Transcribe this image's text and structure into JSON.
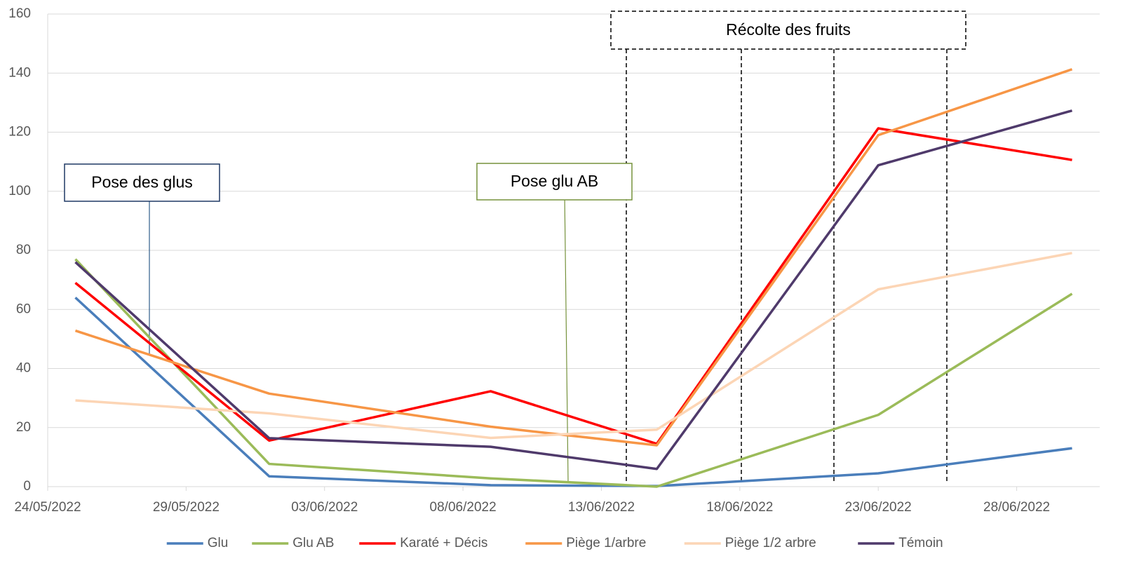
{
  "chart_data": {
    "type": "line",
    "x": [
      "2022-05-25",
      "2022-06-01",
      "2022-06-09",
      "2022-06-15",
      "2022-06-23",
      "2022-06-30"
    ],
    "series": [
      {
        "name": "Glu",
        "color": "#4a7ebb",
        "values": [
          64,
          3.5,
          0.5,
          0.2,
          4.5,
          13
        ]
      },
      {
        "name": "Glu AB",
        "color": "#9bbb59",
        "values": [
          77,
          7.7,
          2.8,
          0,
          24.3,
          65.3
        ]
      },
      {
        "name": "Karaté + Décis",
        "color": "#ff0000",
        "values": [
          69,
          15.6,
          32.3,
          14.5,
          121.3,
          110.6
        ]
      },
      {
        "name": "Piège 1/arbre",
        "color": "#f79646",
        "values": [
          52.8,
          31.5,
          20.3,
          14,
          119,
          141.3
        ]
      },
      {
        "name": "Piège 1/2 arbre",
        "color": "#fcd5b5",
        "values": [
          29.2,
          24.8,
          16.5,
          19.3,
          66.8,
          79.1
        ]
      },
      {
        "name": "Témoin",
        "color": "#4f3a6b",
        "values": [
          76,
          16.4,
          13.5,
          6,
          108.8,
          127.3
        ]
      }
    ],
    "xlim": [
      "2022-05-24",
      "2022-07-01"
    ],
    "xticks": [
      {
        "value": "2022-05-24",
        "label": "24/05/2022"
      },
      {
        "value": "2022-05-29",
        "label": "29/05/2022"
      },
      {
        "value": "2022-06-03",
        "label": "03/06/2022"
      },
      {
        "value": "2022-06-08",
        "label": "08/06/2022"
      },
      {
        "value": "2022-06-13",
        "label": "13/06/2022"
      },
      {
        "value": "2022-06-18",
        "label": "18/06/2022"
      },
      {
        "value": "2022-06-23",
        "label": "23/06/2022"
      },
      {
        "value": "2022-06-28",
        "label": "28/06/2022"
      }
    ],
    "ylim": [
      0,
      160
    ],
    "yticks": [
      0,
      20,
      40,
      60,
      80,
      100,
      120,
      140,
      160
    ],
    "grid": true,
    "legend": "bottom",
    "annotations": [
      "Pose des glus",
      "Pose glu AB",
      "Récolte des fruits"
    ]
  }
}
